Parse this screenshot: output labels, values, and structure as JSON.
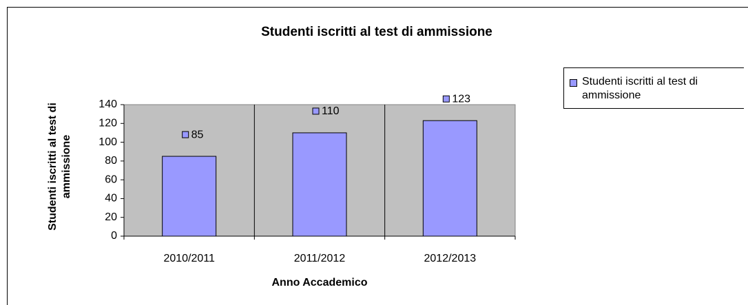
{
  "chart_data": {
    "type": "bar",
    "title": "Studenti iscritti al test di ammissione",
    "x_label": "Anno Accademico",
    "y_label": "Studenti iscritti al test di ammissione",
    "categories": [
      "2010/2011",
      "2011/2012",
      "2012/2013"
    ],
    "series": [
      {
        "name": "Studenti iscritti al test di ammissione",
        "color": "#9999ff",
        "values": [
          85,
          110,
          123
        ]
      }
    ],
    "ylim": [
      0,
      140
    ],
    "yticks": [
      0,
      20,
      40,
      60,
      80,
      100,
      120,
      140
    ],
    "legend": "right"
  }
}
